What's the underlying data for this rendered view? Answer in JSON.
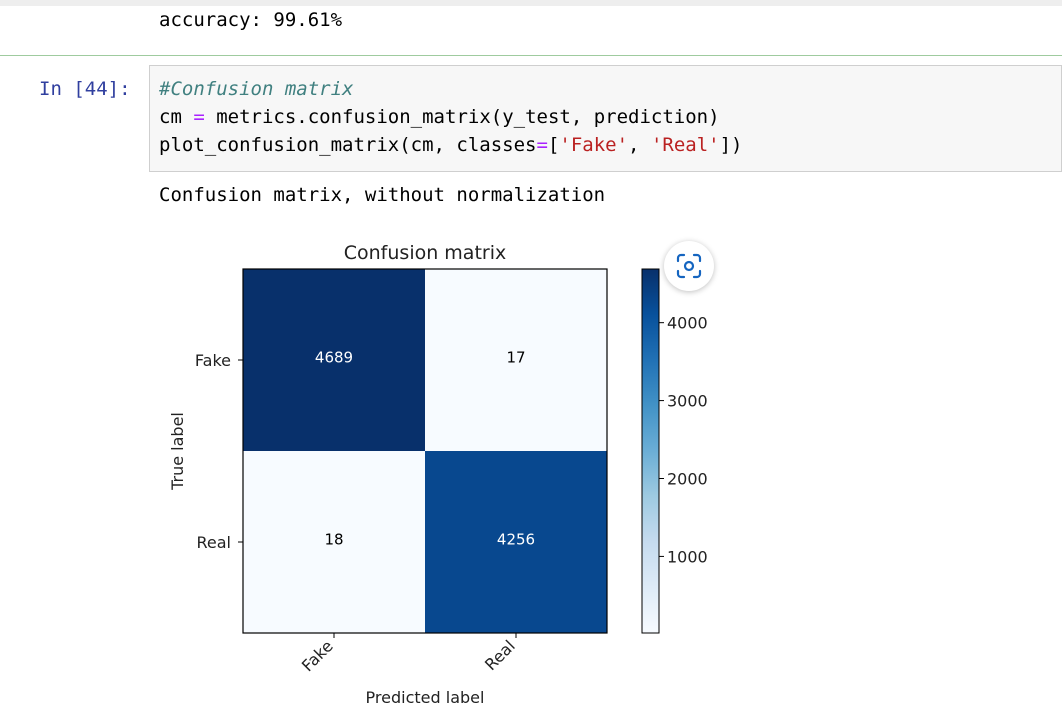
{
  "previous_output": "accuracy: 99.61%",
  "cell": {
    "prompt": "In [44]:",
    "code_lines": [
      [
        {
          "t": "#Confusion matrix",
          "c": "cm-comment"
        }
      ],
      [
        {
          "t": "cm ",
          "c": ""
        },
        {
          "t": "=",
          "c": "cm-op"
        },
        {
          "t": " metrics.confusion_matrix(y_test, prediction)",
          "c": ""
        }
      ],
      [
        {
          "t": "plot_confusion_matrix(cm, classes",
          "c": ""
        },
        {
          "t": "=",
          "c": "cm-op"
        },
        {
          "t": "[",
          "c": ""
        },
        {
          "t": "'Fake'",
          "c": "cm-str"
        },
        {
          "t": ", ",
          "c": ""
        },
        {
          "t": "'Real'",
          "c": "cm-str"
        },
        {
          "t": "])",
          "c": ""
        }
      ]
    ],
    "output_text": "Confusion matrix, without normalization"
  },
  "chart_data": {
    "type": "heatmap",
    "title": "Confusion matrix",
    "xlabel": "Predicted label",
    "ylabel": "True label",
    "x_categories": [
      "Fake",
      "Real"
    ],
    "y_categories": [
      "Fake",
      "Real"
    ],
    "values": [
      [
        4689,
        17
      ],
      [
        18,
        4256
      ]
    ],
    "colormap": "Blues",
    "colorbar": {
      "ticks": [
        1000,
        2000,
        3000,
        4000
      ],
      "range": [
        17,
        4689
      ]
    },
    "text_color_dark_cells": "#ffffff",
    "text_color_light_cells": "#000000"
  },
  "overlay": {
    "icon": "lens-scan-icon"
  }
}
